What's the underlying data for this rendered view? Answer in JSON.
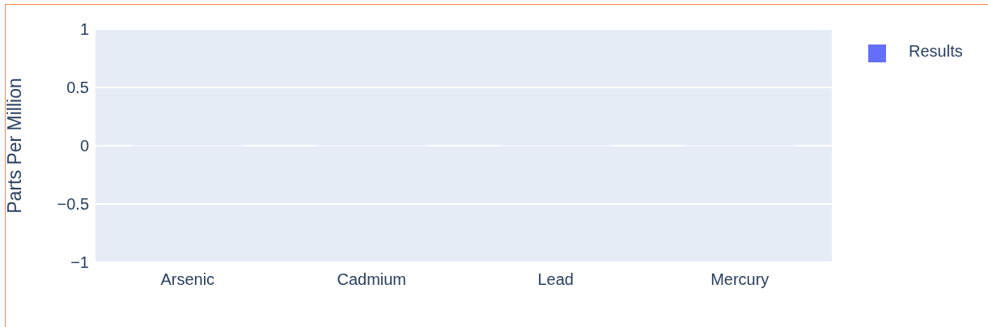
{
  "chart_data": {
    "type": "bar",
    "ylabel": "Parts Per Million",
    "categories": [
      "Arsenic",
      "Cadmium",
      "Lead",
      "Mercury"
    ],
    "series": [
      {
        "name": "Results",
        "color": "#636efa",
        "values": [
          0,
          0,
          0,
          0
        ]
      }
    ],
    "ylim": [
      -1,
      1
    ],
    "yticks": [
      {
        "value": -1,
        "label": "−1"
      },
      {
        "value": -0.5,
        "label": "−0.5"
      },
      0,
      0.5,
      1
    ],
    "grid": "y",
    "legend": "top right"
  }
}
